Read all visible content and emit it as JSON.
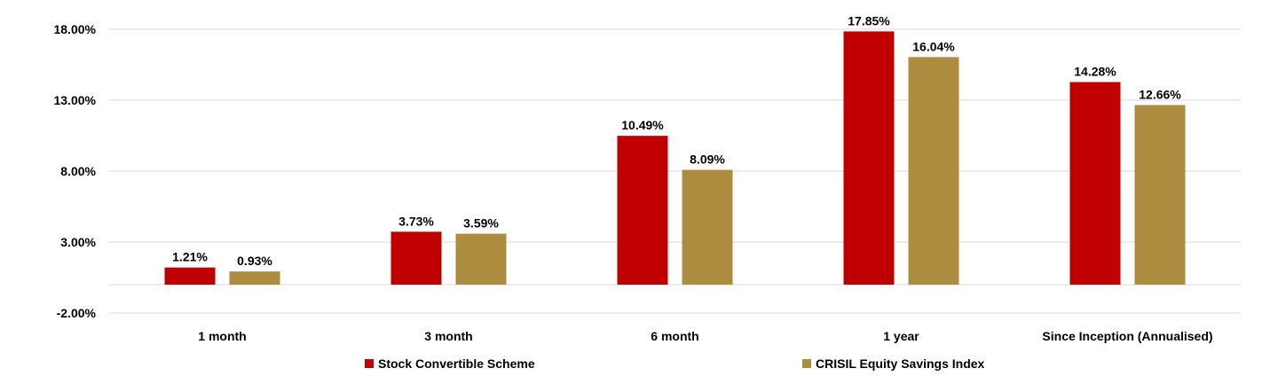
{
  "chart_data": {
    "type": "bar",
    "categories": [
      "1 month",
      "3 month",
      "6 month",
      "1 year",
      "Since Inception (Annualised)"
    ],
    "series": [
      {
        "name": "Stock Convertible Scheme",
        "color": "#c00000",
        "values": [
          1.21,
          3.73,
          10.49,
          17.85,
          14.28
        ],
        "labels": [
          "1.21%",
          "3.73%",
          "10.49%",
          "17.85%",
          "14.28%"
        ]
      },
      {
        "name": "CRISIL Equity Savings Index",
        "color": "#ad8c40",
        "values": [
          0.93,
          3.59,
          8.09,
          16.04,
          12.66
        ],
        "labels": [
          "0.93%",
          "3.59%",
          "8.09%",
          "16.04%",
          "12.66%"
        ]
      }
    ],
    "yticks": [
      -2,
      3,
      8,
      13,
      18
    ],
    "ytick_labels": [
      "-2.00%",
      "3.00%",
      "8.00%",
      "13.00%",
      "18.00%"
    ],
    "ylim": [
      -2,
      20
    ],
    "grid": true,
    "legend_position": "bottom"
  }
}
